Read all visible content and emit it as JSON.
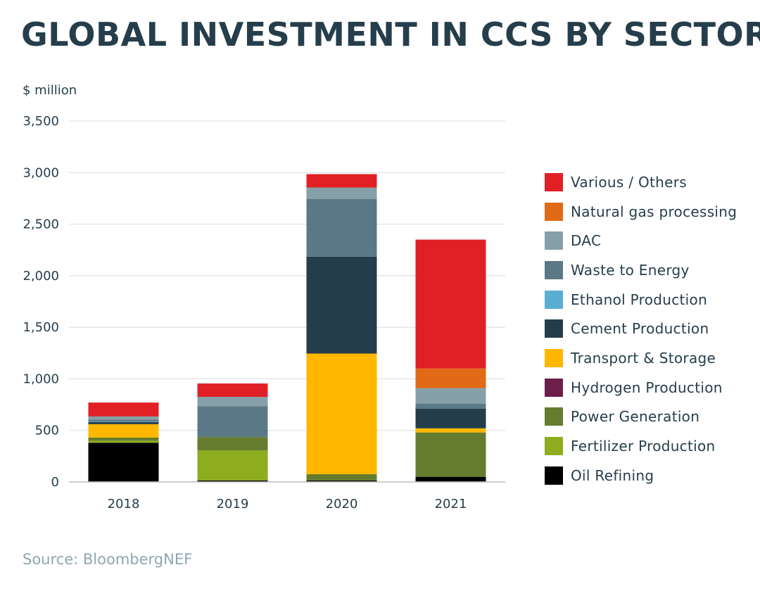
{
  "header": {
    "title": "GLOBAL INVESTMENT IN CCS BY SECTOR"
  },
  "footer": {
    "source": "Source: BloombergNEF"
  },
  "chart_data": {
    "type": "bar",
    "stacked": true,
    "title": "GLOBAL INVESTMENT IN CCS BY SECTOR",
    "ylabel": "$ million",
    "xlabel": "",
    "ylim": [
      0,
      3500
    ],
    "yticks": [
      0,
      500,
      1000,
      1500,
      2000,
      2500,
      3000,
      3500
    ],
    "ytick_labels": [
      "0",
      "500",
      "1,000",
      "1,500",
      "2,000",
      "2,500",
      "3,000",
      "3,500"
    ],
    "grid": true,
    "legend_position": "right",
    "categories": [
      "2018",
      "2019",
      "2020",
      "2021"
    ],
    "series": [
      {
        "name": "Oil Refining",
        "color": "#000000",
        "values": [
          380,
          15,
          15,
          50
        ]
      },
      {
        "name": "Fertilizer Production",
        "color": "#8dac1e",
        "values": [
          20,
          290,
          0,
          0
        ]
      },
      {
        "name": "Power Generation",
        "color": "#657c2e",
        "values": [
          30,
          130,
          60,
          430
        ]
      },
      {
        "name": "Hydrogen Production",
        "color": "#6d1f4c",
        "values": [
          0,
          0,
          0,
          0
        ]
      },
      {
        "name": "Transport & Storage",
        "color": "#ffb700",
        "values": [
          130,
          0,
          1170,
          40
        ]
      },
      {
        "name": "Cement Production",
        "color": "#243d4b",
        "values": [
          20,
          0,
          940,
          190
        ]
      },
      {
        "name": "Ethanol Production",
        "color": "#5aaed3",
        "values": [
          5,
          0,
          0,
          0
        ]
      },
      {
        "name": "Waste to Energy",
        "color": "#5b7886",
        "values": [
          20,
          300,
          560,
          50
        ]
      },
      {
        "name": "DAC",
        "color": "#85a0a8",
        "values": [
          30,
          90,
          110,
          150
        ]
      },
      {
        "name": "Natural gas processing",
        "color": "#e16a17",
        "values": [
          0,
          0,
          0,
          190
        ]
      },
      {
        "name": "Various / Others",
        "color": "#e12026",
        "values": [
          135,
          130,
          130,
          1250
        ]
      }
    ]
  }
}
